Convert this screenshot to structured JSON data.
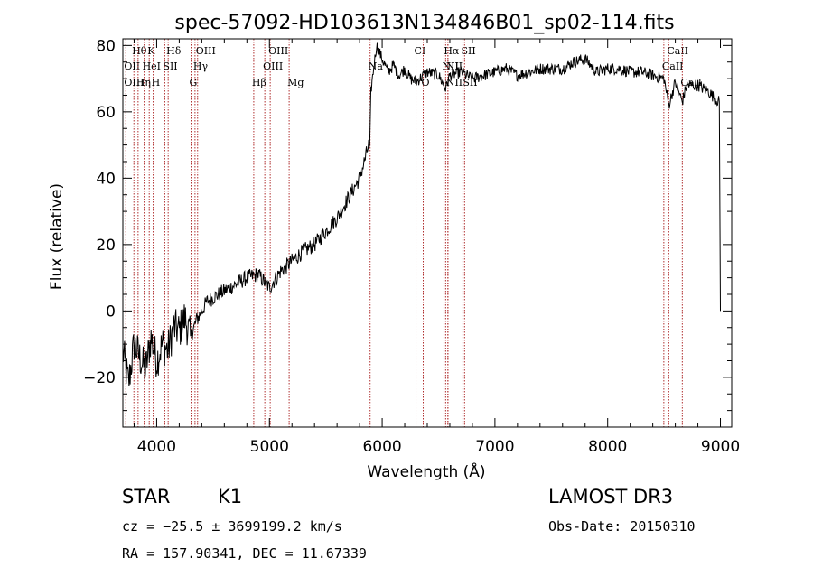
{
  "chart_data": {
    "type": "line",
    "title": "spec-57092-HD103613N134846B01_sp02-114.fits",
    "xlabel": "Wavelength (Å)",
    "ylabel": "Flux (relative)",
    "xlim": [
      3700,
      9100
    ],
    "ylim": [
      -35,
      82
    ],
    "x_ticks": [
      4000,
      5000,
      6000,
      7000,
      8000,
      9000
    ],
    "x_tick_labels": [
      "4000",
      "5000",
      "6000",
      "7000",
      "8000",
      "9000"
    ],
    "y_ticks": [
      -20,
      0,
      20,
      40,
      60,
      80
    ],
    "y_tick_labels": [
      "−20",
      "0",
      "20",
      "40",
      "60",
      "80"
    ],
    "series": [
      {
        "name": "spectrum",
        "color": "#000000",
        "x": [
          3700,
          3750,
          3800,
          3850,
          3900,
          3950,
          4000,
          4050,
          4100,
          4150,
          4200,
          4250,
          4300,
          4350,
          4400,
          4450,
          4500,
          4600,
          4700,
          4800,
          4900,
          5000,
          5100,
          5200,
          5300,
          5400,
          5500,
          5600,
          5700,
          5800,
          5850,
          5880,
          5890,
          5900,
          5920,
          5950,
          6000,
          6050,
          6100,
          6150,
          6200,
          6250,
          6300,
          6400,
          6500,
          6563,
          6600,
          6700,
          6800,
          6900,
          7000,
          7100,
          7200,
          7300,
          7400,
          7500,
          7600,
          7700,
          7800,
          7900,
          8000,
          8100,
          8200,
          8300,
          8400,
          8500,
          8542,
          8600,
          8662,
          8700,
          8800,
          8900,
          8950,
          8990,
          9000
        ],
        "y": [
          -12,
          -22,
          -10,
          -14,
          -18,
          -8,
          -15,
          -10,
          -12,
          -5,
          -6,
          -2,
          -8,
          -3,
          0,
          3,
          4,
          6,
          8,
          10,
          11,
          7,
          12,
          15,
          18,
          20,
          24,
          28,
          34,
          40,
          46,
          50,
          48,
          66,
          72,
          80,
          76,
          72,
          74,
          71,
          73,
          70,
          69,
          72,
          71,
          67,
          71,
          72,
          70,
          71,
          72,
          73,
          71,
          72,
          73,
          73,
          73,
          75,
          76,
          72,
          73,
          73,
          72,
          72,
          71,
          70,
          62,
          69,
          63,
          68,
          68,
          66,
          64,
          63,
          0
        ]
      }
    ],
    "spectral_lines": [
      {
        "label": "Hθ",
        "x": 3798,
        "row": 0
      },
      {
        "label": "K",
        "x": 3934,
        "row": 0
      },
      {
        "label": "Hδ",
        "x": 4102,
        "row": 0
      },
      {
        "label": "OIII",
        "x": 4363,
        "row": 0
      },
      {
        "label": "OIII",
        "x": 5007,
        "row": 0
      },
      {
        "label": "CI",
        "x": 6300,
        "row": 0
      },
      {
        "label": "Hα",
        "x": 6563,
        "row": 0
      },
      {
        "label": "SII",
        "x": 6716,
        "row": 0
      },
      {
        "label": "CaII",
        "x": 8542,
        "row": 0
      },
      {
        "label": "OII",
        "x": 3727,
        "row": 1
      },
      {
        "label": "HeI",
        "x": 3889,
        "row": 1
      },
      {
        "label": "SII",
        "x": 4072,
        "row": 1
      },
      {
        "label": "Hγ",
        "x": 4340,
        "row": 1
      },
      {
        "label": "OIII",
        "x": 4959,
        "row": 1
      },
      {
        "label": "Na",
        "x": 5893,
        "row": 1
      },
      {
        "label": "NII",
        "x": 6548,
        "row": 1
      },
      {
        "label": "NII",
        "x": 6583,
        "row": 1
      },
      {
        "label": "CaII",
        "x": 8498,
        "row": 1
      },
      {
        "label": "OIII",
        "x": 3727,
        "row": 2
      },
      {
        "label": "Hη",
        "x": 3835,
        "row": 2
      },
      {
        "label": "H",
        "x": 3969,
        "row": 2
      },
      {
        "label": "G",
        "x": 4305,
        "row": 2
      },
      {
        "label": "Hβ",
        "x": 4861,
        "row": 2
      },
      {
        "label": "Mg",
        "x": 5175,
        "row": 2
      },
      {
        "label": "O",
        "x": 6364,
        "row": 2
      },
      {
        "label": "NII",
        "x": 6583,
        "row": 2
      },
      {
        "label": "SII",
        "x": 6731,
        "row": 2
      },
      {
        "label": "CaII",
        "x": 8662,
        "row": 2
      }
    ],
    "spectral_line_color": "#b03030"
  },
  "info": {
    "object_type": "STAR",
    "subclass": "K1",
    "survey": "LAMOST DR3",
    "redshift_text": "cz = −25.5 ± 3699199.2 km/s",
    "obs_date_text": "Obs-Date: 20150310",
    "coords_text": "RA = 157.90341, DEC =  11.67339"
  }
}
